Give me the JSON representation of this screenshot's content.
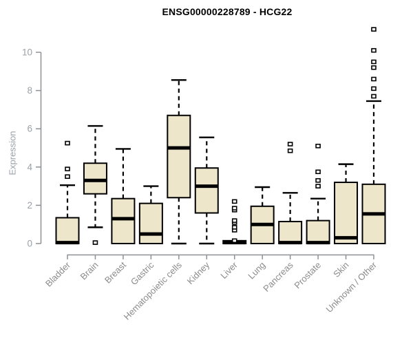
{
  "chart_data": {
    "type": "boxplot",
    "title": "ENSG00000228789 - HCG22",
    "ylabel": "Expression",
    "xlabel": "",
    "ylim": [
      0,
      11.5
    ],
    "yticks": [
      0,
      2,
      4,
      6,
      8,
      10
    ],
    "grid": false,
    "legend": "none",
    "categories": [
      "Bladder",
      "Brain",
      "Breast",
      "Gastric",
      "Hematopoietic cells",
      "Kidney",
      "Liver",
      "Lung",
      "Pancreas",
      "Prostate",
      "Skin",
      "Unknown / Other"
    ],
    "series": [
      {
        "name": "Bladder",
        "whisker_low": 0,
        "q1": 0,
        "median": 0.05,
        "q3": 1.35,
        "whisker_high": 3.05,
        "outliers": [
          3.5,
          3.9,
          5.25
        ]
      },
      {
        "name": "Brain",
        "whisker_low": 0.85,
        "q1": 2.6,
        "median": 3.3,
        "q3": 4.2,
        "whisker_high": 6.15,
        "outliers": [
          0.05
        ]
      },
      {
        "name": "Breast",
        "whisker_low": 0,
        "q1": 0,
        "median": 1.3,
        "q3": 2.35,
        "whisker_high": 4.95,
        "outliers": []
      },
      {
        "name": "Gastric",
        "whisker_low": 0,
        "q1": 0,
        "median": 0.5,
        "q3": 2.1,
        "whisker_high": 3.0,
        "outliers": []
      },
      {
        "name": "Hematopoietic cells",
        "whisker_low": 0,
        "q1": 2.4,
        "median": 5.0,
        "q3": 6.7,
        "whisker_high": 8.55,
        "outliers": []
      },
      {
        "name": "Kidney",
        "whisker_low": 0,
        "q1": 1.6,
        "median": 3.0,
        "q3": 3.95,
        "whisker_high": 5.55,
        "outliers": []
      },
      {
        "name": "Liver",
        "whisker_low": 0,
        "q1": 0,
        "median": 0.05,
        "q3": 0.15,
        "whisker_high": 0.15,
        "outliers": [
          0.15,
          0.7,
          0.85,
          1.1,
          1.2,
          1.75,
          1.85,
          2.2
        ]
      },
      {
        "name": "Lung",
        "whisker_low": 0,
        "q1": 0,
        "median": 1.0,
        "q3": 1.95,
        "whisker_high": 2.95,
        "outliers": []
      },
      {
        "name": "Pancreas",
        "whisker_low": 0,
        "q1": 0,
        "median": 0.05,
        "q3": 1.15,
        "whisker_high": 2.65,
        "outliers": [
          4.85,
          5.2
        ]
      },
      {
        "name": "Prostate",
        "whisker_low": 0,
        "q1": 0,
        "median": 0.05,
        "q3": 1.2,
        "whisker_high": 2.35,
        "outliers": [
          3.0,
          3.3,
          3.75,
          5.1
        ]
      },
      {
        "name": "Skin",
        "whisker_low": 0,
        "q1": 0,
        "median": 0.3,
        "q3": 3.2,
        "whisker_high": 4.15,
        "outliers": []
      },
      {
        "name": "Unknown / Other",
        "whisker_low": 0,
        "q1": 0,
        "median": 1.55,
        "q3": 3.1,
        "whisker_high": 7.45,
        "outliers": [
          7.7,
          8.1,
          8.6,
          9.2,
          9.5,
          10.1,
          11.2
        ]
      }
    ]
  },
  "style": {
    "box_fill": "#ede6cb",
    "box_border": "#000000",
    "median_color": "#000000",
    "whisker_color": "#000000",
    "outlier_stroke": "#000000",
    "outlier_fill": "#ffffff",
    "axis_color": "#8e9094",
    "ytick_label_color": "#9aa0a8",
    "xtick_label_color": "#8b8b8b",
    "title_color": "#000000",
    "background": "#ffffff"
  }
}
